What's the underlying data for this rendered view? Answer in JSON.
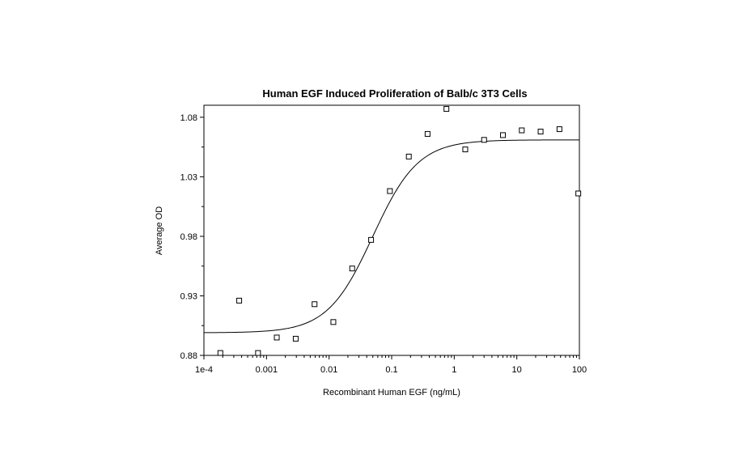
{
  "chart_data": {
    "type": "scatter",
    "title": "Human EGF Induced Proliferation of Balb/c 3T3 Cells",
    "xlabel": "Recombinant Human EGF (ng/mL)",
    "ylabel": "Average OD",
    "x_scale": "log",
    "xlim": [
      0.0001,
      100
    ],
    "ylim": [
      0.88,
      1.09
    ],
    "x_ticks": [
      0.0001,
      0.001,
      0.01,
      0.1,
      1,
      10,
      100
    ],
    "x_tick_labels": [
      "1e-4",
      "0.001",
      "0.01",
      "0.1",
      "1",
      "10",
      "100"
    ],
    "y_ticks": [
      0.88,
      0.93,
      0.98,
      1.03,
      1.08
    ],
    "y_tick_labels": [
      "0.88",
      "0.93",
      "0.98",
      "1.03",
      "1.08"
    ],
    "grid": false,
    "legend": "none",
    "points": [
      {
        "x": 0.000183,
        "y": 0.882
      },
      {
        "x": 0.000366,
        "y": 0.926
      },
      {
        "x": 0.000732,
        "y": 0.882
      },
      {
        "x": 0.00146,
        "y": 0.895
      },
      {
        "x": 0.00293,
        "y": 0.894
      },
      {
        "x": 0.00586,
        "y": 0.923
      },
      {
        "x": 0.0117,
        "y": 0.908
      },
      {
        "x": 0.0234,
        "y": 0.953
      },
      {
        "x": 0.0469,
        "y": 0.977
      },
      {
        "x": 0.0938,
        "y": 1.018
      },
      {
        "x": 0.188,
        "y": 1.047
      },
      {
        "x": 0.375,
        "y": 1.066
      },
      {
        "x": 0.75,
        "y": 1.087
      },
      {
        "x": 1.5,
        "y": 1.053
      },
      {
        "x": 3,
        "y": 1.061
      },
      {
        "x": 6,
        "y": 1.065
      },
      {
        "x": 12,
        "y": 1.069
      },
      {
        "x": 24,
        "y": 1.068
      },
      {
        "x": 48,
        "y": 1.07
      },
      {
        "x": 96,
        "y": 1.016
      }
    ],
    "fit_curve": {
      "model": "4PL",
      "bottom": 0.899,
      "top": 1.061,
      "ec50": 0.05,
      "hill": 1.2
    },
    "marker": "open-square",
    "color": "#000000"
  }
}
